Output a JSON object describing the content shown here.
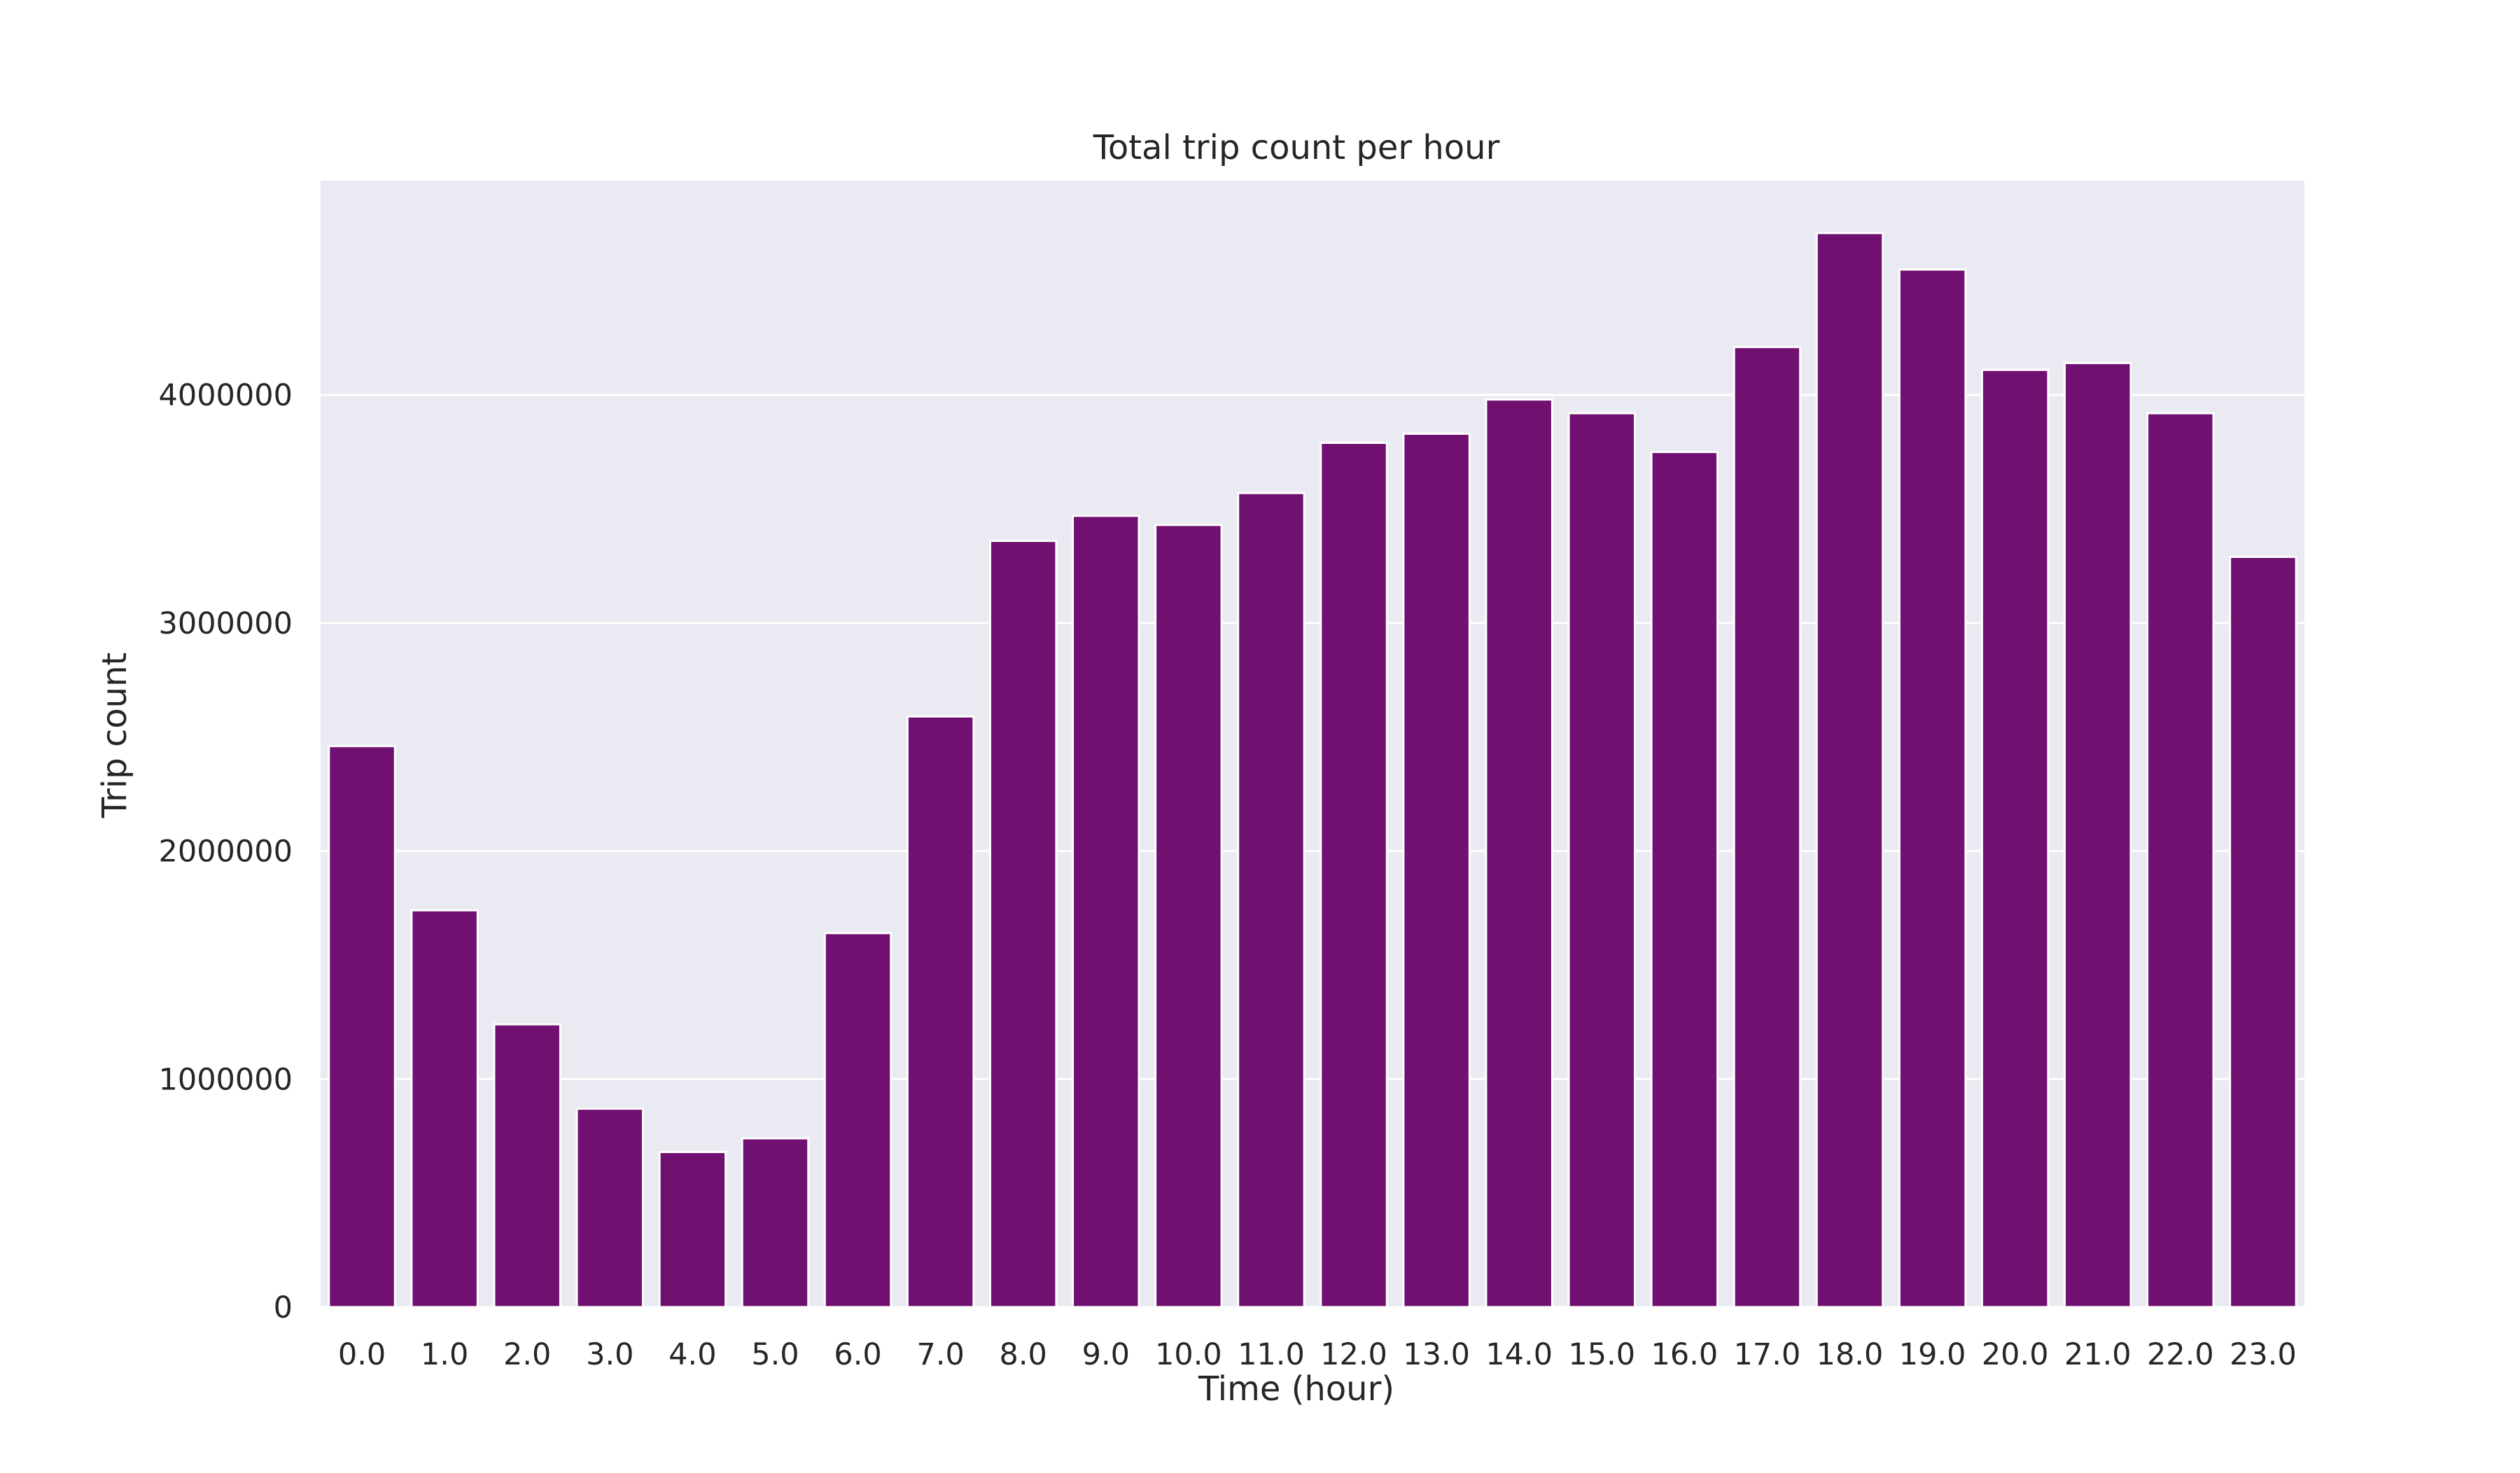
{
  "chart_data": {
    "type": "bar",
    "title": "Total trip count per hour",
    "xlabel": "Time (hour)",
    "ylabel": "Trip count",
    "categories": [
      "0.0",
      "1.0",
      "2.0",
      "3.0",
      "4.0",
      "5.0",
      "6.0",
      "7.0",
      "8.0",
      "9.0",
      "10.0",
      "11.0",
      "12.0",
      "13.0",
      "14.0",
      "15.0",
      "16.0",
      "17.0",
      "18.0",
      "19.0",
      "20.0",
      "21.0",
      "22.0",
      "23.0"
    ],
    "values": [
      2460000,
      1740000,
      1240000,
      870000,
      680000,
      740000,
      1640000,
      2590000,
      3360000,
      3470000,
      3430000,
      3570000,
      3790000,
      3830000,
      3980000,
      3920000,
      3750000,
      4210000,
      4710000,
      4550000,
      4110000,
      4140000,
      3920000,
      3290000
    ],
    "yticks": [
      0,
      1000000,
      2000000,
      3000000,
      4000000
    ],
    "ytick_labels": [
      "0",
      "1000000",
      "2000000",
      "3000000",
      "4000000"
    ],
    "ylim": [
      0,
      4940000
    ],
    "grid": true,
    "bar_color": "#701070",
    "plot_background": "#eaeaf2",
    "grid_color": "#ffffff"
  }
}
